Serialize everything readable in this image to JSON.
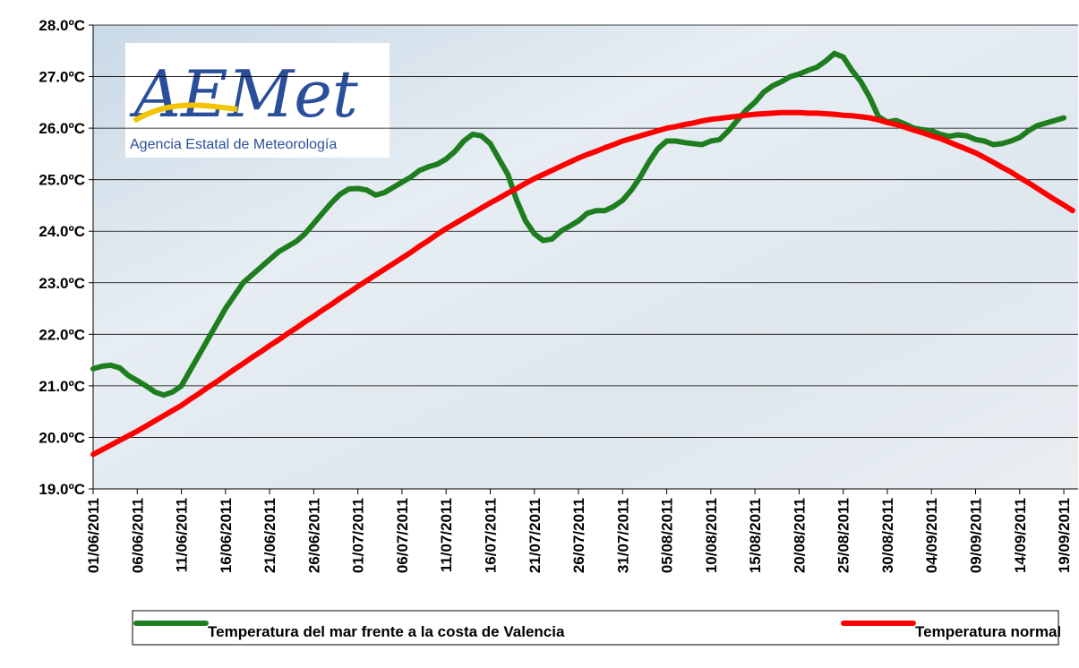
{
  "logo": {
    "text": "AEMet",
    "subtitle": "Agencia Estatal de Meteorología"
  },
  "chart_data": {
    "type": "line",
    "categories": [
      "01/06/2011",
      null,
      null,
      null,
      null,
      "06/06/2011",
      null,
      null,
      null,
      null,
      "11/06/2011",
      null,
      null,
      null,
      null,
      "16/06/2011",
      null,
      null,
      null,
      null,
      "21/06/2011",
      null,
      null,
      null,
      null,
      "26/06/2011",
      null,
      null,
      null,
      null,
      "01/07/2011",
      null,
      null,
      null,
      null,
      "06/07/2011",
      null,
      null,
      null,
      null,
      "11/07/2011",
      null,
      null,
      null,
      null,
      "16/07/2011",
      null,
      null,
      null,
      null,
      "21/07/2011",
      null,
      null,
      null,
      null,
      "26/07/2011",
      null,
      null,
      null,
      null,
      "31/07/2011",
      null,
      null,
      null,
      null,
      "05/08/2011",
      null,
      null,
      null,
      null,
      "10/08/2011",
      null,
      null,
      null,
      null,
      "15/08/2011",
      null,
      null,
      null,
      null,
      "20/08/2011",
      null,
      null,
      null,
      null,
      "25/08/2011",
      null,
      null,
      null,
      null,
      "30/08/2011",
      null,
      null,
      null,
      null,
      "04/09/2011",
      null,
      null,
      null,
      null,
      "09/09/2011",
      null,
      null,
      null,
      null,
      "14/09/2011",
      null,
      null,
      null,
      null,
      "19/09/2011",
      null
    ],
    "series": [
      {
        "name": "Temperatura del mar frente a la costa de Valencia",
        "color": "#1e7d1e",
        "values": [
          21.33,
          21.38,
          21.4,
          21.35,
          21.2,
          21.1,
          21.0,
          20.88,
          20.82,
          20.88,
          21.0,
          21.3,
          21.6,
          21.9,
          22.2,
          22.5,
          22.75,
          23.0,
          23.15,
          23.3,
          23.45,
          23.6,
          23.7,
          23.8,
          23.95,
          24.15,
          24.35,
          24.55,
          24.72,
          24.82,
          24.83,
          24.8,
          24.7,
          24.75,
          24.85,
          24.95,
          25.05,
          25.18,
          25.25,
          25.3,
          25.4,
          25.55,
          25.75,
          25.88,
          25.85,
          25.7,
          25.4,
          25.1,
          24.6,
          24.2,
          23.95,
          23.82,
          23.85,
          24.0,
          24.1,
          24.2,
          24.35,
          24.4,
          24.4,
          24.48,
          24.6,
          24.8,
          25.05,
          25.35,
          25.6,
          25.75,
          25.75,
          25.72,
          25.7,
          25.68,
          25.75,
          25.78,
          25.95,
          26.15,
          26.35,
          26.5,
          26.7,
          26.82,
          26.9,
          27.0,
          27.05,
          27.12,
          27.18,
          27.3,
          27.45,
          27.38,
          27.12,
          26.9,
          26.6,
          26.22,
          26.12,
          26.15,
          26.08,
          26.0,
          25.97,
          25.95,
          25.88,
          25.84,
          25.87,
          25.85,
          25.78,
          25.75,
          25.68,
          25.7,
          25.75,
          25.82,
          25.95,
          26.05,
          26.1,
          26.15,
          26.2,
          null
        ]
      },
      {
        "name": "Temperatura normal",
        "color": "#ff0000",
        "values": [
          19.67,
          19.76,
          19.85,
          19.94,
          20.03,
          20.12,
          20.22,
          20.32,
          20.42,
          20.52,
          20.62,
          20.74,
          20.85,
          20.97,
          21.08,
          21.2,
          21.32,
          21.43,
          21.55,
          21.66,
          21.78,
          21.89,
          22.01,
          22.12,
          22.24,
          22.35,
          22.47,
          22.58,
          22.7,
          22.81,
          22.93,
          23.04,
          23.15,
          23.26,
          23.37,
          23.48,
          23.59,
          23.71,
          23.82,
          23.94,
          24.05,
          24.15,
          24.25,
          24.35,
          24.45,
          24.55,
          24.64,
          24.74,
          24.83,
          24.93,
          25.02,
          25.1,
          25.18,
          25.26,
          25.34,
          25.42,
          25.49,
          25.55,
          25.62,
          25.68,
          25.75,
          25.8,
          25.85,
          25.9,
          25.95,
          26.0,
          26.03,
          26.07,
          26.1,
          26.14,
          26.17,
          26.19,
          26.21,
          26.23,
          26.25,
          26.27,
          26.28,
          26.29,
          26.3,
          26.3,
          26.3,
          26.29,
          26.29,
          26.28,
          26.27,
          26.25,
          26.24,
          26.22,
          26.2,
          26.16,
          26.11,
          26.07,
          26.02,
          25.96,
          25.91,
          25.85,
          25.8,
          25.73,
          25.66,
          25.59,
          25.52,
          25.43,
          25.34,
          25.24,
          25.15,
          25.04,
          24.94,
          24.83,
          24.72,
          24.61,
          24.51,
          24.4
        ]
      }
    ],
    "ylim": [
      19,
      28
    ],
    "yticks": [
      {
        "value": 19,
        "label": "19.0ºC"
      },
      {
        "value": 20,
        "label": "20.0ºC"
      },
      {
        "value": 21,
        "label": "21.0ºC"
      },
      {
        "value": 22,
        "label": "22.0ºC"
      },
      {
        "value": 23,
        "label": "23.0ºC"
      },
      {
        "value": 24,
        "label": "24.0ºC"
      },
      {
        "value": 25,
        "label": "25.0ºC"
      },
      {
        "value": 26,
        "label": "26.0ºC"
      },
      {
        "value": 27,
        "label": "27.0ºC"
      },
      {
        "value": 28,
        "label": "28.0ºC"
      }
    ],
    "grid": true,
    "legend": "bottom"
  }
}
